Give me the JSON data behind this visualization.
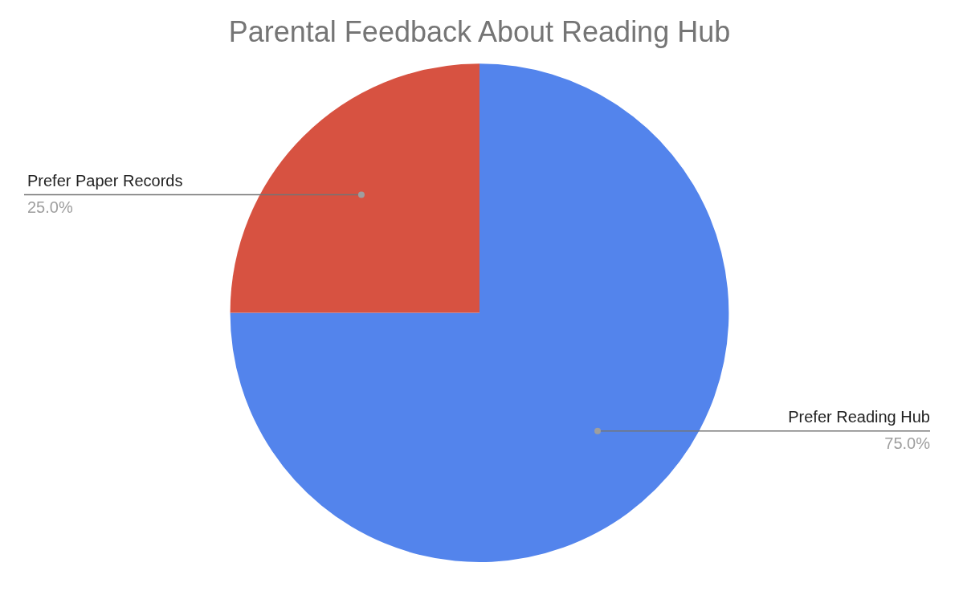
{
  "chart_data": {
    "type": "pie",
    "title": "Parental Feedback About Reading Hub",
    "categories": [
      "Prefer Reading Hub",
      "Prefer Paper Records"
    ],
    "values": [
      75,
      25
    ],
    "colors": [
      "#5384ec",
      "#d75241"
    ],
    "value_labels": [
      "75.0%",
      "25.0%"
    ],
    "legend": false
  }
}
